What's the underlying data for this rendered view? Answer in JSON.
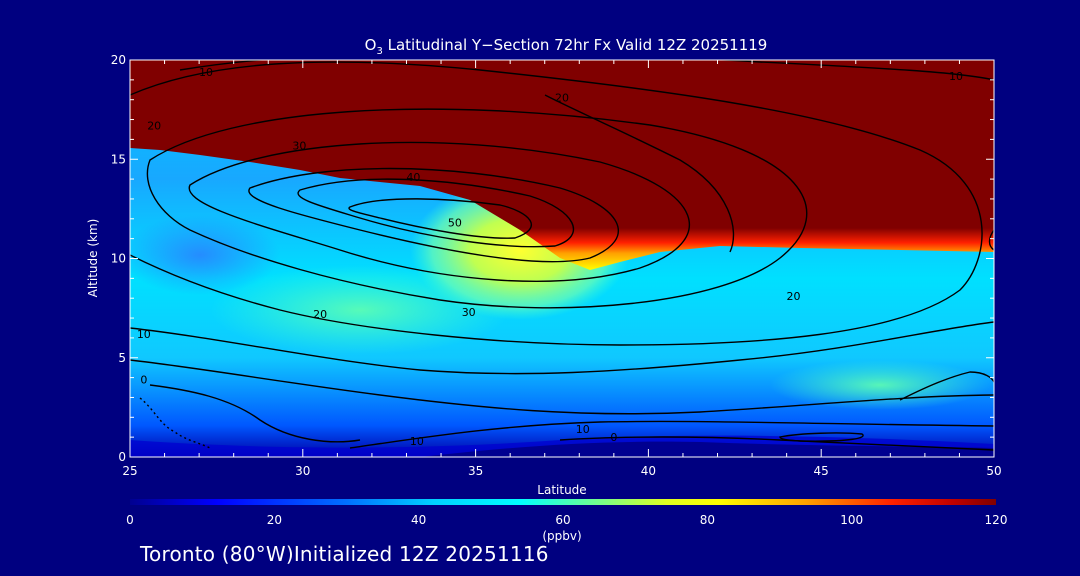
{
  "chart_data": {
    "type": "heatmap",
    "title_prefix": "O",
    "title_sub": "3",
    "title_rest": " Latitudinal Y−Section 72hr  Fx Valid 12Z 20251119",
    "xlabel": "Latitude",
    "ylabel": "Altitude (km)",
    "xlim": [
      25,
      50
    ],
    "ylim": [
      0,
      20
    ],
    "x_ticks": [
      25,
      30,
      35,
      40,
      45,
      50
    ],
    "y_ticks": [
      0,
      5,
      10,
      15,
      20
    ],
    "x_tick_labels": [
      "25",
      "30",
      "35",
      "40",
      "45",
      "50"
    ],
    "y_tick_labels": [
      "0",
      "5",
      "10",
      "15",
      "20"
    ],
    "colorbar": {
      "min": 0,
      "max": 120,
      "ticks": [
        0,
        20,
        40,
        60,
        80,
        100,
        120
      ],
      "tick_labels": [
        "0",
        "20",
        "40",
        "60",
        "80",
        "100",
        "120"
      ],
      "unit_label": "(ppbv)",
      "colors": [
        "#000090",
        "#0000ff",
        "#0060ff",
        "#00c0ff",
        "#00ffff",
        "#60ffb0",
        "#c0ff40",
        "#ffff00",
        "#ffa000",
        "#ff3000",
        "#d00000",
        "#800000"
      ]
    },
    "contour_labels": [
      {
        "text": "10",
        "lat": 27.2,
        "alt": 19.2
      },
      {
        "text": "20",
        "lat": 25.7,
        "alt": 16.5
      },
      {
        "text": "30",
        "lat": 29.9,
        "alt": 15.5
      },
      {
        "text": "40",
        "lat": 33.2,
        "alt": 13.9
      },
      {
        "text": "50",
        "lat": 34.4,
        "alt": 11.6
      },
      {
        "text": "20",
        "lat": 30.5,
        "alt": 7.0
      },
      {
        "text": "30",
        "lat": 34.8,
        "alt": 7.1
      },
      {
        "text": "20",
        "lat": 44.2,
        "alt": 7.9
      },
      {
        "text": "10",
        "lat": 25.4,
        "alt": 6.0
      },
      {
        "text": "0",
        "lat": 25.4,
        "alt": 3.7
      },
      {
        "text": "10",
        "lat": 33.3,
        "alt": 0.6
      },
      {
        "text": "10",
        "lat": 38.1,
        "alt": 1.2
      },
      {
        "text": "0",
        "lat": 39.0,
        "alt": 0.8
      },
      {
        "text": "10",
        "lat": 48.9,
        "alt": 19.0
      },
      {
        "text": "20",
        "lat": 37.5,
        "alt": 17.9
      }
    ]
  },
  "footer": "Toronto (80°W)Initialized 12Z 20251116"
}
